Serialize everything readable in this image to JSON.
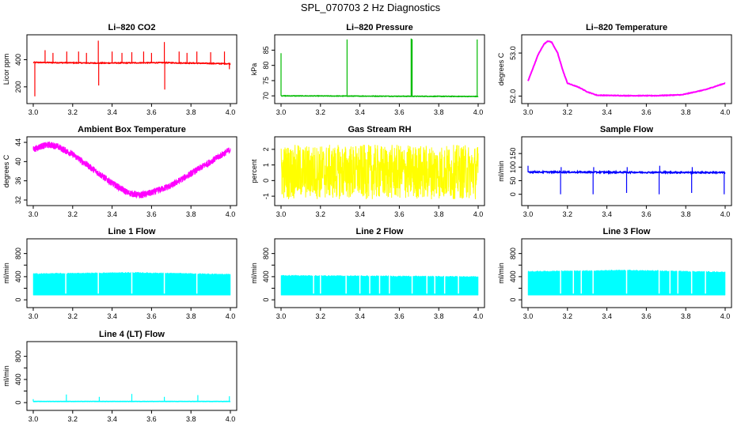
{
  "page": {
    "title": "SPL_070703  2 Hz Diagnostics"
  },
  "colors": {
    "axis": "#000000",
    "background": "#ffffff"
  },
  "chart_data": [
    {
      "id": "co2",
      "type": "line",
      "title": "Li–820 CO2",
      "ylabel": "Licor ppm",
      "color": "#ff0000",
      "xlim": [
        3.0,
        4.0
      ],
      "ylim": [
        100,
        560
      ],
      "yticks": [
        200,
        400
      ],
      "xticks": [
        "3.0",
        "3.2",
        "3.4",
        "3.6",
        "3.8",
        "4.0"
      ],
      "series": [
        {
          "x": [
            3.0,
            3.33,
            3.66,
            4.0
          ],
          "values": [
            380,
            375,
            378,
            370
          ]
        }
      ],
      "baseline": 375,
      "noise": 6,
      "spikes": [
        {
          "x": 3.008,
          "y": 130
        },
        {
          "x": 3.06,
          "y": 470
        },
        {
          "x": 3.1,
          "y": 450
        },
        {
          "x": 3.17,
          "y": 460
        },
        {
          "x": 3.23,
          "y": 460
        },
        {
          "x": 3.27,
          "y": 450
        },
        {
          "x": 3.33,
          "y": 540
        },
        {
          "x": 3.332,
          "y": 210
        },
        {
          "x": 3.4,
          "y": 460
        },
        {
          "x": 3.45,
          "y": 450
        },
        {
          "x": 3.5,
          "y": 455
        },
        {
          "x": 3.56,
          "y": 460
        },
        {
          "x": 3.6,
          "y": 450
        },
        {
          "x": 3.665,
          "y": 530
        },
        {
          "x": 3.667,
          "y": 180
        },
        {
          "x": 3.74,
          "y": 460
        },
        {
          "x": 3.78,
          "y": 450
        },
        {
          "x": 3.83,
          "y": 460
        },
        {
          "x": 3.9,
          "y": 455
        },
        {
          "x": 3.97,
          "y": 460
        },
        {
          "x": 3.995,
          "y": 330
        }
      ]
    },
    {
      "id": "pressure",
      "type": "line",
      "title": "Li–820 Pressure",
      "ylabel": "kPa",
      "color": "#00bb00",
      "xlim": [
        3.0,
        4.0
      ],
      "ylim": [
        68.5,
        89
      ],
      "yticks": [
        70,
        75,
        80,
        85
      ],
      "xticks": [
        "3.0",
        "3.2",
        "3.4",
        "3.6",
        "3.8",
        "4.0"
      ],
      "series": [
        {
          "x": [
            3.0,
            4.0
          ],
          "values": [
            70.0,
            69.8
          ]
        }
      ],
      "baseline": 70,
      "noise": 0.15,
      "spikes": [
        {
          "x": 3.0,
          "y": 84
        },
        {
          "x": 3.335,
          "y": 88.5
        },
        {
          "x": 3.66,
          "y": 88.8
        },
        {
          "x": 3.665,
          "y": 88.6
        },
        {
          "x": 3.995,
          "y": 88.5
        }
      ]
    },
    {
      "id": "licor-temp",
      "type": "line",
      "title": "Li–820 Temperature",
      "ylabel": "degrees C",
      "color": "#ff00ff",
      "xlim": [
        3.0,
        4.0
      ],
      "ylim": [
        51.9,
        53.35
      ],
      "yticks": [
        52.0,
        53.0
      ],
      "ytick_labels": [
        "52.0",
        "53.0"
      ],
      "xticks": [
        "3.0",
        "3.2",
        "3.4",
        "3.6",
        "3.8",
        "4.0"
      ],
      "series": [
        {
          "x": [
            3.0,
            3.05,
            3.08,
            3.1,
            3.12,
            3.15,
            3.18,
            3.2,
            3.26,
            3.3,
            3.35,
            3.5,
            3.65,
            3.78,
            3.8,
            3.9,
            4.0
          ],
          "values": [
            52.35,
            52.95,
            53.2,
            53.28,
            53.25,
            53.0,
            52.55,
            52.3,
            52.2,
            52.1,
            52.02,
            52.01,
            52.01,
            52.03,
            52.05,
            52.15,
            52.3
          ]
        }
      ]
    },
    {
      "id": "ambient-temp",
      "type": "line",
      "title": "Ambient Box Temperature",
      "ylabel": "degrees C",
      "color": "#ff00ff",
      "xlim": [
        3.0,
        4.0
      ],
      "ylim": [
        31.5,
        44.5
      ],
      "yticks": [
        32,
        36,
        40,
        44
      ],
      "xticks": [
        "3.0",
        "3.2",
        "3.4",
        "3.6",
        "3.8",
        "4.0"
      ],
      "series": [
        {
          "x": [
            3.0,
            3.04,
            3.08,
            3.12,
            3.2,
            3.3,
            3.4,
            3.48,
            3.54,
            3.6,
            3.7,
            3.8,
            3.9,
            4.0
          ],
          "values": [
            42.5,
            43.2,
            43.5,
            43.2,
            41.5,
            38.5,
            35.5,
            33.5,
            33.0,
            33.5,
            35.0,
            37.5,
            40.0,
            42.5
          ]
        }
      ],
      "band": 0.7
    },
    {
      "id": "gas-rh",
      "type": "line",
      "title": "Gas Stream RH",
      "ylabel": "percent",
      "color": "#ffff00",
      "xlim": [
        3.0,
        4.0
      ],
      "ylim": [
        -1.4,
        2.6
      ],
      "yticks": [
        -1,
        0,
        1,
        2
      ],
      "xticks": [
        "3.0",
        "3.2",
        "3.4",
        "3.6",
        "3.8",
        "4.0"
      ],
      "series": [
        {
          "x": [
            3.0,
            4.0
          ],
          "values": [
            0.5,
            0.5
          ]
        }
      ],
      "noise_band": [
        -1.2,
        2.3
      ]
    },
    {
      "id": "sample-flow",
      "type": "line",
      "title": "Sample Flow",
      "ylabel": "ml/min",
      "color": "#0000ff",
      "xlim": [
        3.0,
        4.0
      ],
      "ylim": [
        -30,
        200
      ],
      "yticks": [
        0,
        50,
        100,
        150
      ],
      "xticks": [
        "3.0",
        "3.2",
        "3.4",
        "3.6",
        "3.8",
        "4.0"
      ],
      "series": [
        {
          "x": [
            3.0,
            4.0
          ],
          "values": [
            82,
            80
          ]
        }
      ],
      "baseline": 81,
      "noise": 5,
      "spikes": [
        {
          "x": 3.0,
          "y": 105
        },
        {
          "x": 3.165,
          "y": 0
        },
        {
          "x": 3.168,
          "y": 100
        },
        {
          "x": 3.33,
          "y": 0
        },
        {
          "x": 3.333,
          "y": 100
        },
        {
          "x": 3.5,
          "y": 5
        },
        {
          "x": 3.503,
          "y": 100
        },
        {
          "x": 3.665,
          "y": 0
        },
        {
          "x": 3.668,
          "y": 105
        },
        {
          "x": 3.83,
          "y": 5
        },
        {
          "x": 3.833,
          "y": 100
        },
        {
          "x": 3.995,
          "y": 0
        }
      ]
    },
    {
      "id": "line1-flow",
      "type": "line",
      "title": "Line 1 Flow",
      "ylabel": "ml/min",
      "color": "#00ffff",
      "xlim": [
        3.0,
        4.0
      ],
      "ylim": [
        -80,
        1000
      ],
      "yticks": [
        0,
        400,
        800
      ],
      "yticks_minor": [
        200,
        600
      ],
      "xticks": [
        "3.0",
        "3.2",
        "3.4",
        "3.6",
        "3.8",
        "4.0"
      ],
      "series": [
        {
          "x": [
            3.0,
            3.5,
            4.0
          ],
          "values": [
            450,
            470,
            440
          ]
        }
      ],
      "fill_low": 80,
      "gaps": [
        3.165,
        3.33,
        3.5,
        3.665,
        3.83
      ]
    },
    {
      "id": "line2-flow",
      "type": "line",
      "title": "Line 2 Flow",
      "ylabel": "ml/min",
      "color": "#00ffff",
      "xlim": [
        3.0,
        4.0
      ],
      "ylim": [
        -80,
        1000
      ],
      "yticks": [
        0,
        400,
        800
      ],
      "yticks_minor": [
        200,
        600
      ],
      "xticks": [
        "3.0",
        "3.2",
        "3.4",
        "3.6",
        "3.8",
        "4.0"
      ],
      "series": [
        {
          "x": [
            3.0,
            3.5,
            4.0
          ],
          "values": [
            420,
            410,
            400
          ]
        }
      ],
      "fill_low": 80,
      "gaps": [
        3.165,
        3.2,
        3.33,
        3.4,
        3.45,
        3.5,
        3.55,
        3.665,
        3.74,
        3.78,
        3.83,
        3.9
      ]
    },
    {
      "id": "line3-flow",
      "type": "line",
      "title": "Line 3 Flow",
      "ylabel": "ml/min",
      "color": "#00ffff",
      "xlim": [
        3.0,
        4.0
      ],
      "ylim": [
        -80,
        1000
      ],
      "yticks": [
        0,
        400,
        800
      ],
      "yticks_minor": [
        200,
        600
      ],
      "xticks": [
        "3.0",
        "3.2",
        "3.4",
        "3.6",
        "3.8",
        "4.0"
      ],
      "series": [
        {
          "x": [
            3.0,
            3.5,
            4.0
          ],
          "values": [
            490,
            510,
            480
          ]
        }
      ],
      "fill_low": 80,
      "gaps": [
        3.165,
        3.23,
        3.27,
        3.33,
        3.5,
        3.665,
        3.72,
        3.76,
        3.83,
        3.9
      ]
    },
    {
      "id": "line4-flow",
      "type": "line",
      "title": "Line 4 (LT) Flow",
      "ylabel": "ml/min",
      "color": "#00ffff",
      "xlim": [
        3.0,
        4.0
      ],
      "ylim": [
        -80,
        1000
      ],
      "yticks": [
        0,
        400,
        800
      ],
      "yticks_minor": [
        200,
        600
      ],
      "xticks": [
        "3.0",
        "3.2",
        "3.4",
        "3.6",
        "3.8",
        "4.0"
      ],
      "series": [
        {
          "x": [
            3.0,
            4.0
          ],
          "values": [
            20,
            20
          ]
        }
      ],
      "baseline": 20,
      "noise": 3,
      "spikes": [
        {
          "x": 3.0,
          "y": 60
        },
        {
          "x": 3.168,
          "y": 140
        },
        {
          "x": 3.335,
          "y": 100
        },
        {
          "x": 3.5,
          "y": 150
        },
        {
          "x": 3.665,
          "y": 100
        },
        {
          "x": 3.835,
          "y": 130
        },
        {
          "x": 3.995,
          "y": 110
        }
      ]
    }
  ]
}
